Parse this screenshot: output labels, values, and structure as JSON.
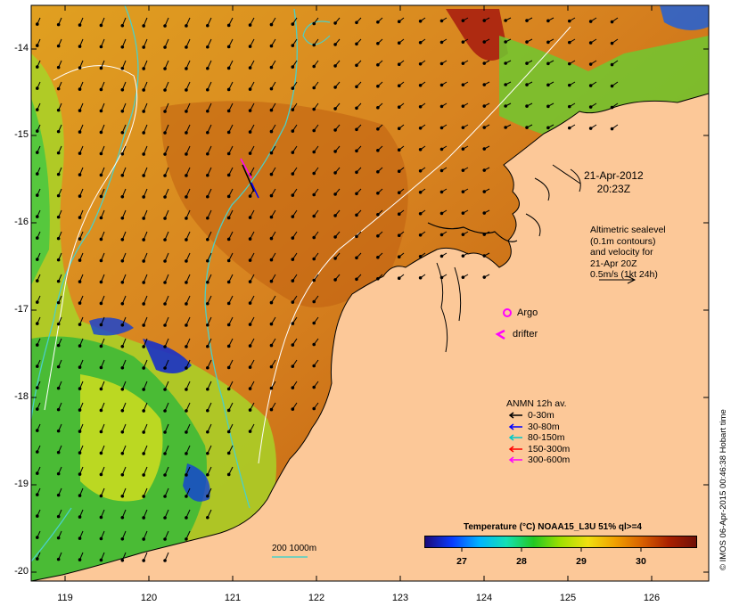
{
  "map": {
    "date_line1": "21-Apr-2012",
    "date_line2": "20:23Z",
    "altimetry_note": [
      "Altimetric sealevel",
      "(0.1m contours)",
      "and velocity for",
      "21-Apr 20Z",
      "0.5m/s (1kt 24h)"
    ],
    "argo_label": "Argo",
    "drifter_label": "drifter",
    "legend_title": "ANMN 12h av.",
    "legend_items": [
      {
        "label": "0-30m",
        "color": "#000000"
      },
      {
        "label": "30-80m",
        "color": "#0000ff"
      },
      {
        "label": "80-150m",
        "color": "#00c8c8"
      },
      {
        "label": "150-300m",
        "color": "#ff0000"
      },
      {
        "label": "300-600m",
        "color": "#ff00ff"
      }
    ],
    "colorbar_title": "Temperature (°C) NOAA15_L3U 51% ql>=4",
    "colorbar_ticks": [
      "27",
      "28",
      "29",
      "30"
    ],
    "isobath_label": "200  1000m",
    "credit": "© IMOS 06-Apr-2015 00:46:38 Hobart time",
    "lat_ticks": [
      "-14",
      "-15",
      "-16",
      "-17",
      "-18",
      "-19",
      "-20"
    ],
    "lon_ticks": [
      "119",
      "120",
      "121",
      "122",
      "123",
      "124",
      "125",
      "126"
    ],
    "colors": {
      "land": "#fcc898",
      "isobath": "#4ad0c8",
      "contour": "#ffffff"
    }
  }
}
